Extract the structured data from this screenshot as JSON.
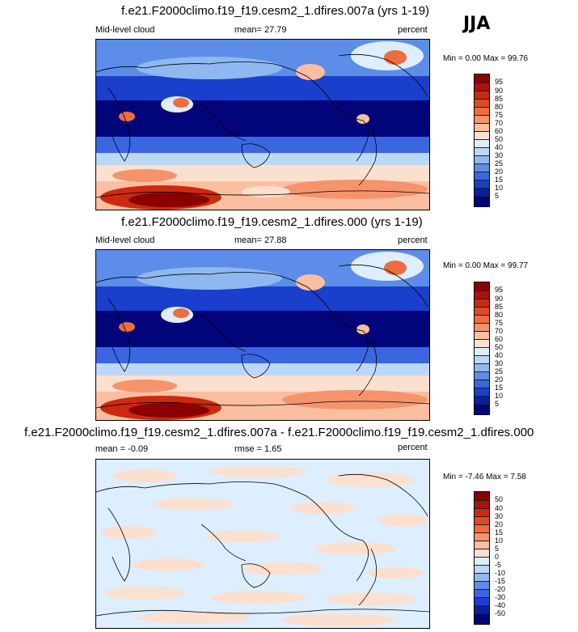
{
  "season": "JJA",
  "panels": [
    {
      "title": "f.e21.F2000climo.f19_f19.cesm2_1.dfires.007a (yrs 1-19)",
      "left_label": "Mid-level cloud",
      "center_label": "mean=  27.79",
      "right_label": "percent",
      "minmax": "Min =   0.00 Max =  99.76",
      "colorbar_labels": [
        "95",
        "90",
        "85",
        "80",
        "75",
        "70",
        "60",
        "50",
        "40",
        "30",
        "25",
        "20",
        "15",
        "10",
        "5"
      ]
    },
    {
      "title": "f.e21.F2000climo.f19_f19.cesm2_1.dfires.000 (yrs 1-19)",
      "left_label": "Mid-level cloud",
      "center_label": "mean=  27.88",
      "right_label": "percent",
      "minmax": "Min =   0.00 Max =  99.77",
      "colorbar_labels": [
        "95",
        "90",
        "85",
        "80",
        "75",
        "70",
        "60",
        "50",
        "40",
        "30",
        "25",
        "20",
        "15",
        "10",
        "5"
      ]
    },
    {
      "title": "f.e21.F2000climo.f19_f19.cesm2_1.dfires.007a - f.e21.F2000climo.f19_f19.cesm2_1.dfires.000",
      "left_label": "mean =  -0.09",
      "center_label": "rmse =   1.65",
      "right_label": "percent",
      "minmax": "Min =  -7.46 Max =   7.58",
      "colorbar_labels": [
        "50",
        "40",
        "30",
        "20",
        "15",
        "10",
        "5",
        "0",
        "-5",
        "-10",
        "-15",
        "-20",
        "-30",
        "-40",
        "-50"
      ]
    }
  ],
  "colors": {
    "cloud_scale": [
      "#8b0000",
      "#b01010",
      "#cc2a10",
      "#e04a20",
      "#ee6d40",
      "#f5946c",
      "#fbbea0",
      "#fbe0d0",
      "#ddeeff",
      "#bcd8f8",
      "#8fb8f0",
      "#5c8de8",
      "#3a66e0",
      "#1a3fcc",
      "#0a1f9e",
      "#02057a"
    ],
    "diff_scale": [
      "#8b0000",
      "#b01010",
      "#cc2a10",
      "#e04a20",
      "#ee6d40",
      "#f5946c",
      "#fbbea0",
      "#fbe0d0",
      "#ddeeff",
      "#bcd8f8",
      "#8fb8f0",
      "#5c8de8",
      "#3a66e0",
      "#1a3fcc",
      "#0a1f9e",
      "#02057a"
    ]
  }
}
